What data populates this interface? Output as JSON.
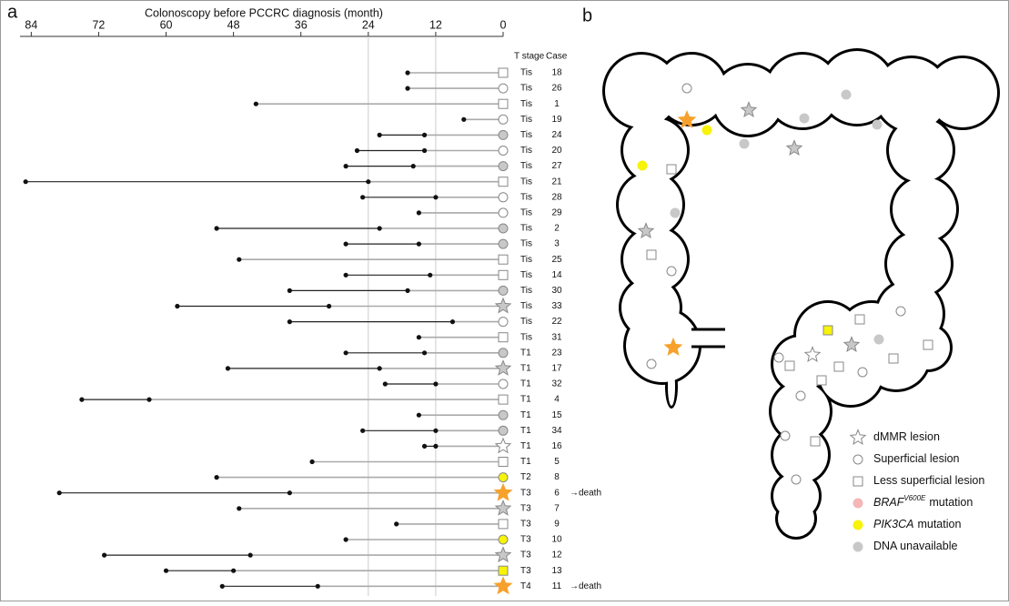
{
  "chart_data": {
    "type": "timeline",
    "panel_label": "a",
    "xlabel": "Colonoscopy before PCCRC diagnosis (month)",
    "xlim": [
      86,
      0
    ],
    "xticks": [
      84,
      72,
      60,
      48,
      36,
      24,
      12,
      0
    ],
    "grid_lines": [
      24,
      12
    ],
    "stage_header": "T stage",
    "case_header": "Case",
    "line_color": "#222222",
    "tail_color": "#aaaaaa",
    "cases": [
      {
        "case": "18",
        "stage": "Tis",
        "months": [
          17
        ],
        "marker": "square",
        "color": "#ffffff"
      },
      {
        "case": "26",
        "stage": "Tis",
        "months": [
          17
        ],
        "marker": "circle",
        "color": "#ffffff"
      },
      {
        "case": "1",
        "stage": "Tis",
        "months": [
          44
        ],
        "marker": "square",
        "color": "#ffffff"
      },
      {
        "case": "19",
        "stage": "Tis",
        "months": [
          7
        ],
        "marker": "circle",
        "color": "#ffffff"
      },
      {
        "case": "24",
        "stage": "Tis",
        "months": [
          22,
          14
        ],
        "marker": "circle",
        "color": "#c8c8c8"
      },
      {
        "case": "20",
        "stage": "Tis",
        "months": [
          26,
          14
        ],
        "marker": "circle",
        "color": "#ffffff"
      },
      {
        "case": "27",
        "stage": "Tis",
        "months": [
          28,
          16
        ],
        "marker": "circle",
        "color": "#c8c8c8"
      },
      {
        "case": "21",
        "stage": "Tis",
        "months": [
          85,
          24
        ],
        "marker": "square",
        "color": "#ffffff"
      },
      {
        "case": "28",
        "stage": "Tis",
        "months": [
          25,
          12
        ],
        "marker": "circle",
        "color": "#ffffff"
      },
      {
        "case": "29",
        "stage": "Tis",
        "months": [
          15
        ],
        "marker": "circle",
        "color": "#ffffff"
      },
      {
        "case": "2",
        "stage": "Tis",
        "months": [
          51,
          22
        ],
        "marker": "circle",
        "color": "#c8c8c8"
      },
      {
        "case": "3",
        "stage": "Tis",
        "months": [
          28,
          15
        ],
        "marker": "circle",
        "color": "#c8c8c8"
      },
      {
        "case": "25",
        "stage": "Tis",
        "months": [
          47
        ],
        "marker": "square",
        "color": "#ffffff"
      },
      {
        "case": "14",
        "stage": "Tis",
        "months": [
          28,
          13
        ],
        "marker": "square",
        "color": "#ffffff"
      },
      {
        "case": "30",
        "stage": "Tis",
        "months": [
          38,
          17
        ],
        "marker": "circle",
        "color": "#c8c8c8"
      },
      {
        "case": "33",
        "stage": "Tis",
        "months": [
          58,
          31
        ],
        "marker": "star",
        "color": "#c8c8c8"
      },
      {
        "case": "22",
        "stage": "Tis",
        "months": [
          38,
          9
        ],
        "marker": "circle",
        "color": "#ffffff"
      },
      {
        "case": "31",
        "stage": "Tis",
        "months": [
          15
        ],
        "marker": "square",
        "color": "#ffffff"
      },
      {
        "case": "23",
        "stage": "T1",
        "months": [
          28,
          14
        ],
        "marker": "circle",
        "color": "#c8c8c8"
      },
      {
        "case": "17",
        "stage": "T1",
        "months": [
          49,
          22
        ],
        "marker": "star",
        "color": "#c8c8c8"
      },
      {
        "case": "32",
        "stage": "T1",
        "months": [
          21,
          12
        ],
        "marker": "circle",
        "color": "#ffffff"
      },
      {
        "case": "4",
        "stage": "T1",
        "months": [
          75,
          63
        ],
        "marker": "square",
        "color": "#ffffff"
      },
      {
        "case": "15",
        "stage": "T1",
        "months": [
          15
        ],
        "marker": "circle",
        "color": "#c8c8c8"
      },
      {
        "case": "34",
        "stage": "T1",
        "months": [
          25,
          12
        ],
        "marker": "circle",
        "color": "#c8c8c8"
      },
      {
        "case": "16",
        "stage": "T1",
        "months": [
          14,
          12
        ],
        "marker": "star",
        "color": "#ffffff"
      },
      {
        "case": "5",
        "stage": "T1",
        "months": [
          34
        ],
        "marker": "square",
        "color": "#ffffff"
      },
      {
        "case": "8",
        "stage": "T2",
        "months": [
          51
        ],
        "marker": "circle",
        "color": "#f7f30a"
      },
      {
        "case": "6",
        "stage": "T3",
        "months": [
          79,
          38
        ],
        "marker": "star",
        "color": "#f7a12c",
        "note": "→death"
      },
      {
        "case": "7",
        "stage": "T3",
        "months": [
          47
        ],
        "marker": "star",
        "color": "#c8c8c8"
      },
      {
        "case": "9",
        "stage": "T3",
        "months": [
          19
        ],
        "marker": "square",
        "color": "#ffffff"
      },
      {
        "case": "10",
        "stage": "T3",
        "months": [
          28
        ],
        "marker": "circle",
        "color": "#f7f30a"
      },
      {
        "case": "12",
        "stage": "T3",
        "months": [
          71,
          45
        ],
        "marker": "star",
        "color": "#c8c8c8"
      },
      {
        "case": "13",
        "stage": "T3",
        "months": [
          60,
          48
        ],
        "marker": "square",
        "color": "#f7f30a"
      },
      {
        "case": "11",
        "stage": "T4",
        "months": [
          50,
          33
        ],
        "marker": "star",
        "color": "#f7a12c",
        "note": "→death"
      }
    ]
  },
  "diagram": {
    "panel_label": "b",
    "legend": [
      {
        "text": "dMMR lesion",
        "marker": "star",
        "color": "#ffffff"
      },
      {
        "text": "Superficial lesion",
        "marker": "circle",
        "color": "#ffffff"
      },
      {
        "text": "Less superficial lesion",
        "marker": "square",
        "color": "#ffffff"
      },
      {
        "gene": "BRAF",
        "superscript": "V600E",
        "text": "mutation",
        "marker": "dot",
        "color": "#f4b6b6"
      },
      {
        "gene": "PIK3CA",
        "text": "mutation",
        "marker": "dot",
        "color": "#f7f30a"
      },
      {
        "text": "DNA unavailable",
        "marker": "dot",
        "color": "#c8c8c8"
      }
    ]
  }
}
